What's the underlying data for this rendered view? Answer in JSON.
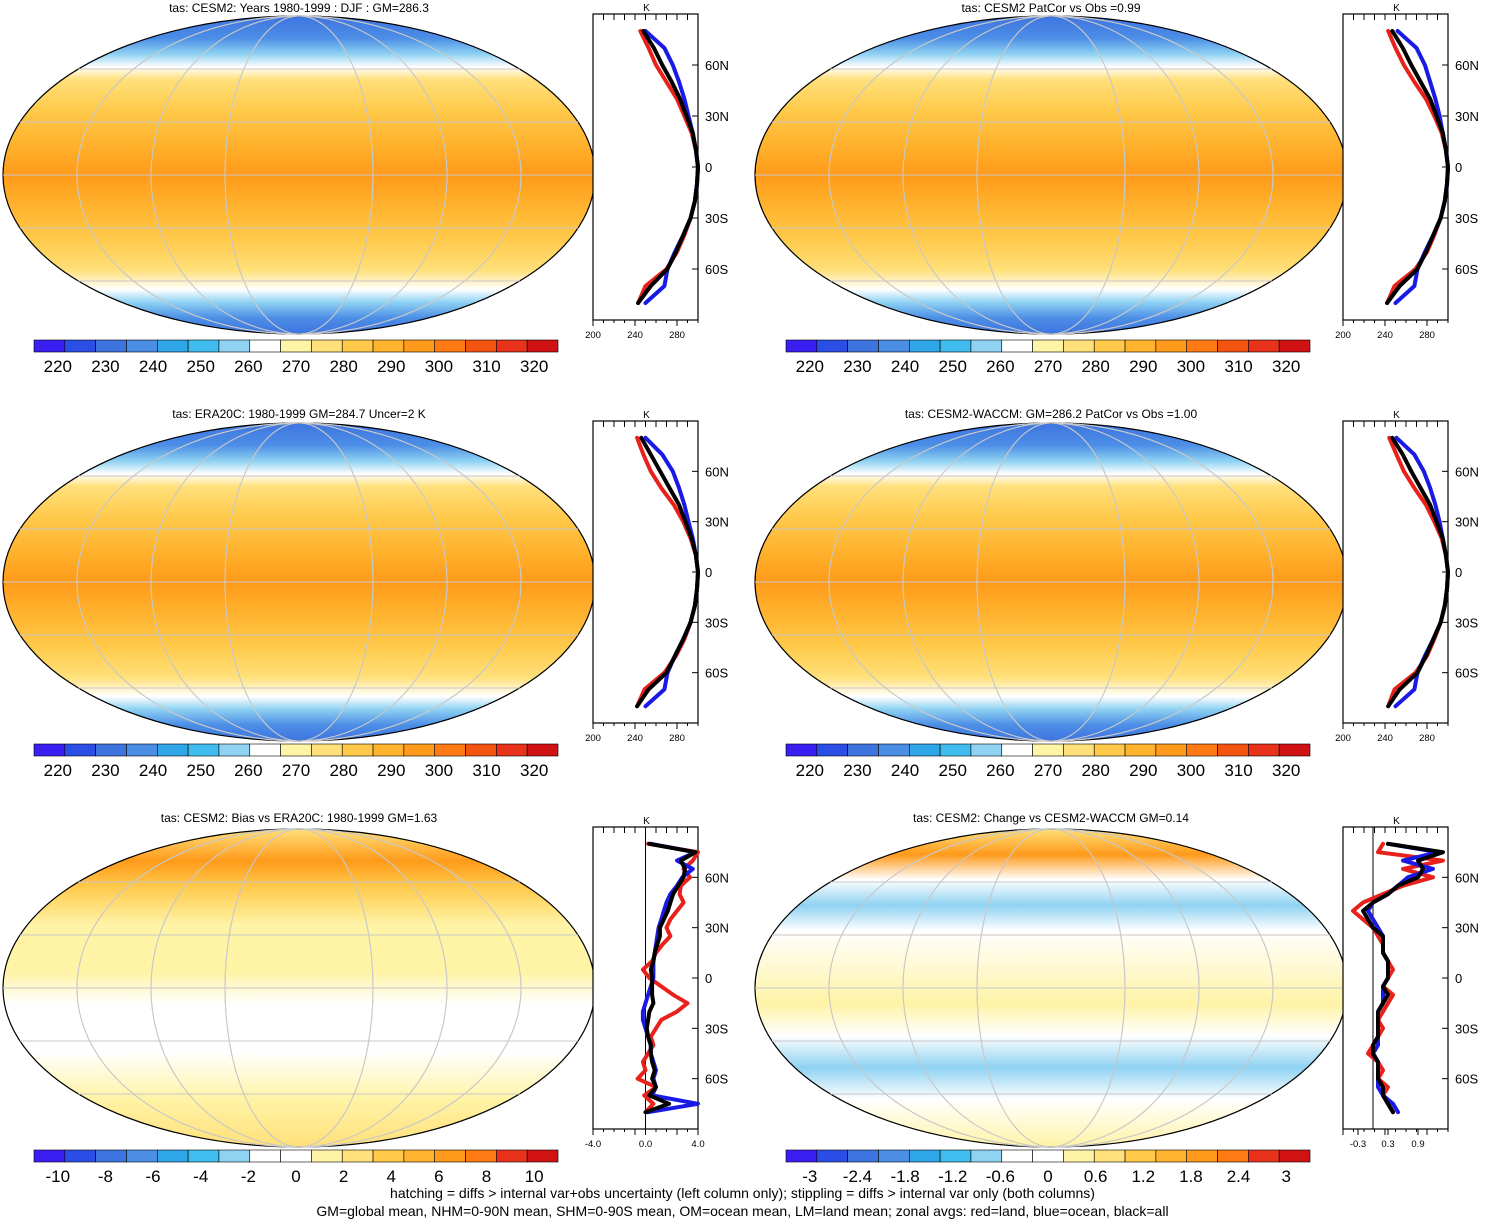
{
  "colors": {
    "land": "#e8211a",
    "ocean": "#1a1ae6",
    "all": "#000000",
    "abs_scale": [
      "#3b1ef2",
      "#2b4fe6",
      "#3e74e0",
      "#4c8ee6",
      "#2fa6e8",
      "#3fbdee",
      "#8fd2f2",
      "#ffffff",
      "#fff3a6",
      "#ffe07a",
      "#ffc94a",
      "#ffb32e",
      "#ff9a1a",
      "#ff7a12",
      "#f55410",
      "#e8321a",
      "#d01212"
    ],
    "diff_scale": [
      "#3b1ef2",
      "#2b4fe6",
      "#3e74e0",
      "#4c8ee6",
      "#2fa6e8",
      "#3fbdee",
      "#8fd2f2",
      "#ffffff",
      "#ffffff",
      "#fff3a6",
      "#ffe07a",
      "#ffc94a",
      "#ffb32e",
      "#ff9a1a",
      "#ff7a12",
      "#e8321a",
      "#d01212"
    ]
  },
  "chart_data": [
    {
      "type": "heatmap",
      "panel": "top-left",
      "title": "tas: CESM2: Years 1980-1999 : DJF : GM=286.3",
      "colorbar_labels": [
        "220",
        "230",
        "240",
        "250",
        "260",
        "270",
        "280",
        "290",
        "300",
        "310",
        "320"
      ],
      "colorbar_range": [
        215,
        325
      ],
      "profile": {
        "type": "line",
        "xunit": "K",
        "x_tick_labels": [
          "200",
          "240",
          "280"
        ],
        "xlim": [
          200,
          300
        ],
        "y_tick_labels": [
          "60N",
          "30N",
          "0",
          "30S",
          "60S"
        ],
        "ylim": [
          -90,
          90
        ],
        "lat": [
          80,
          70,
          60,
          50,
          40,
          30,
          20,
          10,
          0,
          -10,
          -20,
          -30,
          -40,
          -50,
          -60,
          -70,
          -80
        ],
        "series": [
          {
            "name": "land",
            "values": [
              245,
              253,
              260,
              270,
              280,
              287,
              294,
              298,
              300,
              299,
              297,
              293,
              287,
              280,
              270,
              250,
              243
            ]
          },
          {
            "name": "ocean",
            "values": [
              250,
              268,
              276,
              282,
              287,
              291,
              295,
              298,
              300,
              299,
              297,
              293,
              286,
              278,
              271,
              268,
              250
            ]
          },
          {
            "name": "all",
            "values": [
              248,
              258,
              266,
              275,
              283,
              289,
              295,
              298,
              300,
              299,
              297,
              293,
              286,
              279,
              271,
              255,
              243
            ]
          }
        ]
      }
    },
    {
      "type": "heatmap",
      "panel": "top-right",
      "title": "tas: CESM2 PatCor vs Obs =0.99",
      "colorbar_labels": [
        "220",
        "230",
        "240",
        "250",
        "260",
        "270",
        "280",
        "290",
        "300",
        "310",
        "320"
      ],
      "colorbar_range": [
        215,
        325
      ],
      "profile": {
        "type": "line",
        "xunit": "K",
        "x_tick_labels": [
          "200",
          "240",
          "280"
        ],
        "xlim": [
          200,
          300
        ],
        "y_tick_labels": [
          "60N",
          "30N",
          "0",
          "30S",
          "60S"
        ],
        "ylim": [
          -90,
          90
        ],
        "lat": [
          80,
          70,
          60,
          50,
          40,
          30,
          20,
          10,
          0,
          -10,
          -20,
          -30,
          -40,
          -50,
          -60,
          -70,
          -80
        ],
        "series": [
          {
            "name": "land",
            "values": [
              243,
              250,
              258,
              268,
              279,
              287,
              294,
              298,
              300,
              299,
              297,
              293,
              287,
              280,
              269,
              249,
              242
            ]
          },
          {
            "name": "ocean",
            "values": [
              252,
              270,
              278,
              283,
              288,
              292,
              295,
              298,
              300,
              299,
              297,
              293,
              286,
              278,
              271,
              268,
              250
            ]
          },
          {
            "name": "all",
            "values": [
              247,
              257,
              265,
              274,
              283,
              289,
              295,
              298,
              300,
              299,
              297,
              293,
              286,
              279,
              271,
              254,
              242
            ]
          }
        ]
      }
    },
    {
      "type": "heatmap",
      "panel": "middle-left",
      "title": "tas: ERA20C: 1980-1999 GM=284.7 Uncer=2 K",
      "colorbar_labels": [
        "220",
        "230",
        "240",
        "250",
        "260",
        "270",
        "280",
        "290",
        "300",
        "310",
        "320"
      ],
      "colorbar_range": [
        215,
        325
      ],
      "profile": {
        "type": "line",
        "xunit": "K",
        "x_tick_labels": [
          "200",
          "240",
          "280"
        ],
        "xlim": [
          200,
          300
        ],
        "y_tick_labels": [
          "60N",
          "30N",
          "0",
          "30S",
          "60S"
        ],
        "ylim": [
          -90,
          90
        ],
        "lat": [
          80,
          70,
          60,
          50,
          40,
          30,
          20,
          10,
          0,
          -10,
          -20,
          -30,
          -40,
          -50,
          -60,
          -70,
          -80
        ],
        "series": [
          {
            "name": "land",
            "values": [
              242,
              248,
              255,
              265,
              277,
              286,
              293,
              298,
              300,
              299,
              297,
              293,
              287,
              279,
              268,
              249,
              242
            ]
          },
          {
            "name": "ocean",
            "values": [
              250,
              266,
              276,
              282,
              287,
              291,
              295,
              298,
              300,
              299,
              297,
              293,
              286,
              278,
              271,
              268,
              250
            ]
          },
          {
            "name": "all",
            "values": [
              246,
              255,
              264,
              273,
              282,
              288,
              294,
              298,
              300,
              299,
              297,
              293,
              286,
              278,
              270,
              253,
              242
            ]
          }
        ]
      }
    },
    {
      "type": "heatmap",
      "panel": "middle-right",
      "title": "tas: CESM2-WACCM: GM=286.2 PatCor vs Obs =1.00",
      "colorbar_labels": [
        "220",
        "230",
        "240",
        "250",
        "260",
        "270",
        "280",
        "290",
        "300",
        "310",
        "320"
      ],
      "colorbar_range": [
        215,
        325
      ],
      "profile": {
        "type": "line",
        "xunit": "K",
        "x_tick_labels": [
          "200",
          "240",
          "280"
        ],
        "xlim": [
          200,
          300
        ],
        "y_tick_labels": [
          "60N",
          "30N",
          "0",
          "30S",
          "60S"
        ],
        "ylim": [
          -90,
          90
        ],
        "lat": [
          80,
          70,
          60,
          50,
          40,
          30,
          20,
          10,
          0,
          -10,
          -20,
          -30,
          -40,
          -50,
          -60,
          -70,
          -80
        ],
        "series": [
          {
            "name": "land",
            "values": [
              244,
              251,
              258,
              268,
              279,
              287,
              294,
              298,
              300,
              299,
              297,
              293,
              287,
              280,
              269,
              249,
              243
            ]
          },
          {
            "name": "ocean",
            "values": [
              251,
              268,
              277,
              283,
              288,
              292,
              295,
              298,
              300,
              299,
              297,
              293,
              286,
              278,
              271,
              268,
              250
            ]
          },
          {
            "name": "all",
            "values": [
              247,
              257,
              265,
              274,
              283,
              289,
              295,
              298,
              300,
              299,
              297,
              293,
              286,
              279,
              271,
              254,
              243
            ]
          }
        ]
      }
    },
    {
      "type": "heatmap",
      "panel": "bottom-left",
      "title": "tas: CESM2: Bias vs ERA20C: 1980-1999 GM=1.63",
      "colorbar_labels": [
        "-10",
        "-8",
        "-6",
        "-4",
        "-2",
        "0",
        "2",
        "4",
        "6",
        "8",
        "10"
      ],
      "colorbar_range": [
        -11,
        11
      ],
      "profile": {
        "type": "line",
        "xunit": "K",
        "x_tick_labels": [
          "-4.0",
          "0.0",
          "4.0"
        ],
        "xlim": [
          -4,
          4
        ],
        "y_tick_labels": [
          "60N",
          "30N",
          "0",
          "30S",
          "60S"
        ],
        "ylim": [
          -90,
          90
        ],
        "lat": [
          80,
          75,
          70,
          65,
          60,
          55,
          50,
          45,
          40,
          35,
          30,
          25,
          20,
          15,
          10,
          5,
          0,
          -5,
          -10,
          -15,
          -20,
          -25,
          -30,
          -35,
          -40,
          -45,
          -50,
          -55,
          -60,
          -65,
          -70,
          -75,
          -80
        ],
        "series": [
          {
            "name": "land",
            "values": [
              0.2,
              4.0,
              3.6,
              2.9,
              3.4,
              2.7,
              2.6,
              2.9,
              2.4,
              1.9,
              1.6,
              1.9,
              1.3,
              0.8,
              0.5,
              -0.2,
              0.3,
              1.2,
              2.1,
              3.2,
              2.4,
              1.2,
              0.8,
              0.4,
              0.6,
              0.2,
              -0.2,
              0.0,
              -0.6,
              0.8,
              -0.1,
              0.6,
              0.0
            ]
          },
          {
            "name": "ocean",
            "values": [
              0.4,
              3.8,
              2.4,
              3.6,
              2.8,
              2.4,
              1.9,
              1.6,
              1.4,
              1.2,
              1.0,
              0.9,
              0.8,
              0.7,
              0.6,
              0.6,
              0.6,
              0.4,
              0.2,
              0.0,
              -0.2,
              -0.2,
              0.0,
              0.2,
              0.4,
              0.4,
              0.6,
              0.8,
              0.6,
              0.8,
              0.5,
              4.0,
              0.2
            ]
          },
          {
            "name": "all",
            "values": [
              0.3,
              3.8,
              2.7,
              3.0,
              2.9,
              2.5,
              2.1,
              1.9,
              1.7,
              1.4,
              1.1,
              1.1,
              0.9,
              0.7,
              0.6,
              0.4,
              0.5,
              0.5,
              0.5,
              0.6,
              0.3,
              0.2,
              0.1,
              0.2,
              0.4,
              0.4,
              0.5,
              0.7,
              0.5,
              0.8,
              0.3,
              1.8,
              0.0
            ]
          }
        ]
      }
    },
    {
      "type": "heatmap",
      "panel": "bottom-right",
      "title": "tas: CESM2: Change vs CESM2-WACCM GM=0.14",
      "colorbar_labels": [
        "-3",
        "-2.4",
        "-1.8",
        "-1.2",
        "-0.6",
        "0",
        "0.6",
        "1.2",
        "1.8",
        "2.4",
        "3"
      ],
      "colorbar_range": [
        -3.3,
        3.3
      ],
      "profile": {
        "type": "line",
        "xunit": "K",
        "x_tick_labels": [
          "-0.3",
          "0.3",
          "0.9"
        ],
        "xlim": [
          -0.6,
          1.5
        ],
        "y_tick_labels": [
          "60N",
          "30N",
          "0",
          "30S",
          "60S"
        ],
        "ylim": [
          -90,
          90
        ],
        "lat": [
          80,
          75,
          70,
          65,
          60,
          55,
          50,
          45,
          40,
          35,
          30,
          25,
          20,
          15,
          10,
          5,
          0,
          -5,
          -10,
          -15,
          -20,
          -25,
          -30,
          -35,
          -40,
          -45,
          -50,
          -55,
          -60,
          -65,
          -70,
          -75,
          -80
        ],
        "series": [
          {
            "name": "land",
            "values": [
              0.2,
              0.1,
              1.4,
              0.6,
              1.2,
              0.6,
              0.2,
              -0.2,
              -0.4,
              -0.2,
              0.0,
              0.1,
              0.2,
              0.2,
              0.3,
              0.4,
              0.3,
              0.2,
              0.4,
              0.3,
              0.2,
              0.1,
              0.2,
              0.1,
              0.0,
              -0.1,
              0.1,
              0.2,
              0.1,
              0.3,
              0.2,
              0.3,
              0.4
            ]
          },
          {
            "name": "ocean",
            "values": [
              0.3,
              1.3,
              0.6,
              1.2,
              0.7,
              0.5,
              0.3,
              0.0,
              -0.1,
              0.0,
              0.1,
              0.2,
              0.2,
              0.2,
              0.3,
              0.3,
              0.3,
              0.2,
              0.2,
              0.2,
              0.1,
              0.1,
              0.1,
              0.1,
              0.1,
              0.0,
              0.1,
              0.1,
              0.1,
              0.1,
              0.2,
              0.4,
              0.5
            ]
          },
          {
            "name": "all",
            "values": [
              0.3,
              1.4,
              0.9,
              1.0,
              0.9,
              0.5,
              0.3,
              0.0,
              -0.2,
              -0.1,
              0.0,
              0.2,
              0.2,
              0.2,
              0.3,
              0.3,
              0.3,
              0.2,
              0.3,
              0.2,
              0.1,
              0.1,
              0.1,
              0.1,
              0.0,
              0.0,
              0.1,
              0.1,
              0.1,
              0.2,
              0.2,
              0.3,
              0.4
            ]
          }
        ]
      }
    }
  ],
  "footnote": {
    "line1": "hatching = diffs > internal var+obs uncertainty (left column only); stippling = diffs > internal var only (both columns)",
    "line2": "GM=global mean, NHM=0-90N mean, SHM=0-90S mean, OM=ocean mean, LM=land mean; zonal avgs: red=land, blue=ocean, black=all"
  }
}
